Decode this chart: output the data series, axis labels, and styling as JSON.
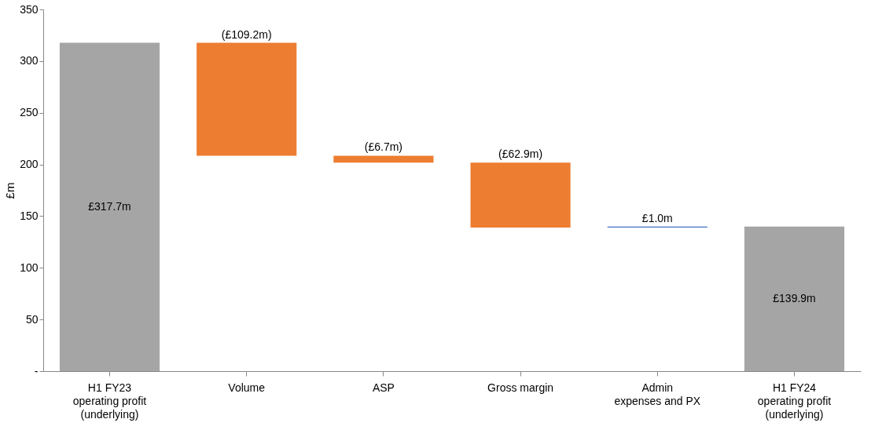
{
  "chart_data": {
    "type": "bar",
    "ylabel": "£m",
    "categories": [
      "H1 FY23\noperating profit\n(underlying)",
      "Volume",
      "ASP",
      "Gross margin",
      "Admin\nexpenses and PX",
      "H1 FY24\noperating profit\n(underlying)"
    ],
    "values": [
      317.7,
      -109.2,
      -6.7,
      -62.9,
      1.0,
      139.9
    ],
    "base": [
      0,
      317.7,
      208.5,
      201.8,
      138.9,
      0
    ],
    "colors": [
      "#a5a5a5",
      "#ed7d31",
      "#ed7d31",
      "#ed7d31",
      "#4472c4",
      "#a5a5a5"
    ],
    "value_labels": [
      "£317.7m",
      "(£109.2m)",
      "(£6.7m)",
      "(£62.9m)",
      "£1.0m",
      "£139.9m"
    ],
    "ylim": [
      0,
      350
    ],
    "yticks": [
      {
        "value": 0,
        "label": "-"
      },
      50,
      100,
      150,
      200,
      250,
      300,
      350
    ],
    "grid": false
  }
}
